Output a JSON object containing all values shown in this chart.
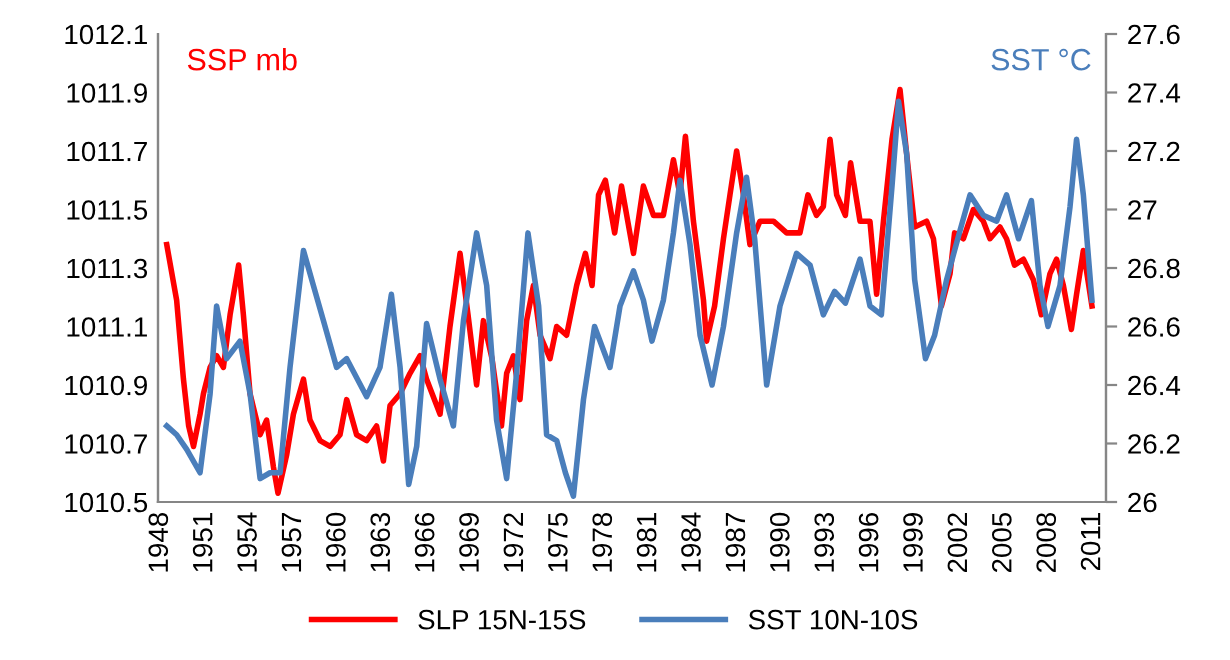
{
  "chart_data": {
    "type": "line",
    "ylabel": "SSP mb",
    "y2label": "SST °C",
    "xlim": [
      1947.82,
      2011.88
    ],
    "xticks": [
      1948,
      1951,
      1954,
      1957,
      1960,
      1963,
      1966,
      1969,
      1972,
      1975,
      1978,
      1981,
      1984,
      1987,
      1990,
      1993,
      1996,
      1999,
      2002,
      2005,
      2008,
      2011
    ],
    "ylim": [
      1010.5,
      1012.1
    ],
    "yticks": [
      1010.5,
      1010.7,
      1010.9,
      1011.1,
      1011.3,
      1011.5,
      1011.7,
      1011.9,
      1012.1
    ],
    "y2lim": [
      26,
      27.6
    ],
    "y2ticks": [
      26,
      26.2,
      26.4,
      26.6,
      26.8,
      27,
      27.2,
      27.4,
      27.6
    ],
    "grid": false,
    "legend": "bottom",
    "marker": "none",
    "line_style": "solid",
    "series": [
      {
        "name": "SLP 15N-15S",
        "color": "#ff0000",
        "x": [
          1948.41,
          1949.08,
          1949.54,
          1949.89,
          1950.22,
          1950.66,
          1950.89,
          1951.34,
          1951.78,
          1952.24,
          1952.69,
          1953.27,
          1953.59,
          1954.04,
          1954.72,
          1955.16,
          1955.62,
          1955.93,
          1956.51,
          1956.97,
          1957.65,
          1958.09,
          1958.77,
          1959.45,
          1960.12,
          1960.57,
          1961.24,
          1961.92,
          1962.59,
          1963.05,
          1963.5,
          1964.18,
          1964.85,
          1965.53,
          1965.97,
          1966.88,
          1967.55,
          1968.23,
          1968.77,
          1969.35,
          1969.81,
          1970.39,
          1971.03,
          1971.38,
          1971.84,
          1972.28,
          1972.73,
          1973.19,
          1973.64,
          1974.31,
          1974.76,
          1975.43,
          1976.11,
          1976.7,
          1977.15,
          1977.59,
          1978.05,
          1978.68,
          1979.14,
          1979.95,
          1980.62,
          1981.3,
          1981.97,
          1982.65,
          1983.09,
          1983.46,
          1984.0,
          1984.68,
          1984.89,
          1985.43,
          1986.03,
          1986.47,
          1986.92,
          1987.38,
          1987.82,
          1988.5,
          1989.41,
          1990.3,
          1991.2,
          1991.74,
          1992.32,
          1992.78,
          1993.23,
          1993.68,
          1994.27,
          1994.62,
          1995.26,
          1995.93,
          1996.38,
          1996.84,
          1997.42,
          1997.96,
          1998.41,
          1998.95,
          1999.76,
          2000.22,
          2000.76,
          2001.34,
          2001.65,
          2002.24,
          2002.92,
          2003.59,
          2004.04,
          2004.72,
          2005.16,
          2005.7,
          2006.3,
          2006.97,
          2007.51,
          2008.09,
          2008.54,
          2009.0,
          2009.54,
          2009.89,
          2010.35,
          2010.93
        ],
        "values": [
          1011.38,
          1011.19,
          1010.92,
          1010.76,
          1010.69,
          1010.8,
          1010.87,
          1010.96,
          1011.0,
          1010.96,
          1011.14,
          1011.31,
          1011.14,
          1010.87,
          1010.73,
          1010.78,
          1010.62,
          1010.53,
          1010.66,
          1010.8,
          1010.92,
          1010.78,
          1010.71,
          1010.69,
          1010.73,
          1010.85,
          1010.73,
          1010.71,
          1010.76,
          1010.64,
          1010.83,
          1010.87,
          1010.94,
          1011.0,
          1010.92,
          1010.8,
          1011.1,
          1011.35,
          1011.14,
          1010.9,
          1011.12,
          1010.99,
          1010.76,
          1010.94,
          1011.0,
          1010.85,
          1011.12,
          1011.24,
          1011.07,
          1010.99,
          1011.1,
          1011.07,
          1011.24,
          1011.35,
          1011.24,
          1011.55,
          1011.6,
          1011.42,
          1011.58,
          1011.35,
          1011.58,
          1011.48,
          1011.48,
          1011.67,
          1011.55,
          1011.75,
          1011.46,
          1011.19,
          1011.05,
          1011.17,
          1011.4,
          1011.55,
          1011.7,
          1011.55,
          1011.38,
          1011.46,
          1011.46,
          1011.42,
          1011.42,
          1011.55,
          1011.48,
          1011.51,
          1011.74,
          1011.55,
          1011.48,
          1011.66,
          1011.46,
          1011.46,
          1011.21,
          1011.46,
          1011.74,
          1011.91,
          1011.69,
          1011.44,
          1011.46,
          1011.4,
          1011.17,
          1011.28,
          1011.42,
          1011.4,
          1011.5,
          1011.46,
          1011.4,
          1011.44,
          1011.4,
          1011.31,
          1011.33,
          1011.26,
          1011.14,
          1011.28,
          1011.33,
          1011.24,
          1011.09,
          1011.21,
          1011.36,
          1011.17
        ]
      },
      {
        "name": "SST 10N-10S",
        "color": "#4a7ebb",
        "axis": "y2",
        "x": [
          1948.41,
          1949.08,
          1949.76,
          1950.66,
          1951.34,
          1951.78,
          1952.46,
          1953.36,
          1954.04,
          1954.72,
          1955.39,
          1956.07,
          1956.74,
          1957.65,
          1958.32,
          1959.0,
          1959.89,
          1960.57,
          1961.92,
          1962.82,
          1963.59,
          1964.18,
          1964.76,
          1965.3,
          1965.97,
          1966.88,
          1967.78,
          1968.46,
          1969.35,
          1970.03,
          1970.7,
          1971.38,
          1972.05,
          1972.82,
          1973.54,
          1974.08,
          1974.76,
          1975.35,
          1975.89,
          1976.57,
          1977.32,
          1978.36,
          1979.04,
          1979.95,
          1980.62,
          1981.2,
          1981.97,
          1982.65,
          1983.09,
          1983.77,
          1984.45,
          1985.26,
          1986.03,
          1986.92,
          1987.59,
          1988.14,
          1988.95,
          1989.85,
          1990.97,
          1991.88,
          1992.78,
          1993.54,
          1994.27,
          1995.26,
          1995.93,
          1996.7,
          1997.42,
          1997.86,
          1998.41,
          1998.95,
          1999.68,
          2000.3,
          2001.11,
          2001.97,
          2002.69,
          2003.59,
          2004.49,
          2005.16,
          2005.97,
          2006.84,
          2007.42,
          2007.96,
          2008.77,
          2009.45,
          2009.89,
          2010.35,
          2010.93
        ],
        "values": [
          26.26,
          26.23,
          26.18,
          26.1,
          26.37,
          26.67,
          26.49,
          26.55,
          26.37,
          26.08,
          26.1,
          26.1,
          26.46,
          26.86,
          26.74,
          26.62,
          26.46,
          26.49,
          26.36,
          26.46,
          26.71,
          26.46,
          26.06,
          26.19,
          26.61,
          26.42,
          26.26,
          26.62,
          26.92,
          26.74,
          26.28,
          26.08,
          26.44,
          26.92,
          26.67,
          26.23,
          26.21,
          26.1,
          26.02,
          26.35,
          26.6,
          26.46,
          26.67,
          26.79,
          26.69,
          26.55,
          26.69,
          26.92,
          27.1,
          26.88,
          26.57,
          26.4,
          26.6,
          26.92,
          27.11,
          26.9,
          26.4,
          26.67,
          26.85,
          26.81,
          26.64,
          26.72,
          26.68,
          26.83,
          26.67,
          26.64,
          27.08,
          27.37,
          27.19,
          26.76,
          26.49,
          26.57,
          26.76,
          26.92,
          27.05,
          26.98,
          26.96,
          27.05,
          26.9,
          27.03,
          26.74,
          26.6,
          26.74,
          27.01,
          27.24,
          27.05,
          26.69
        ]
      }
    ]
  }
}
